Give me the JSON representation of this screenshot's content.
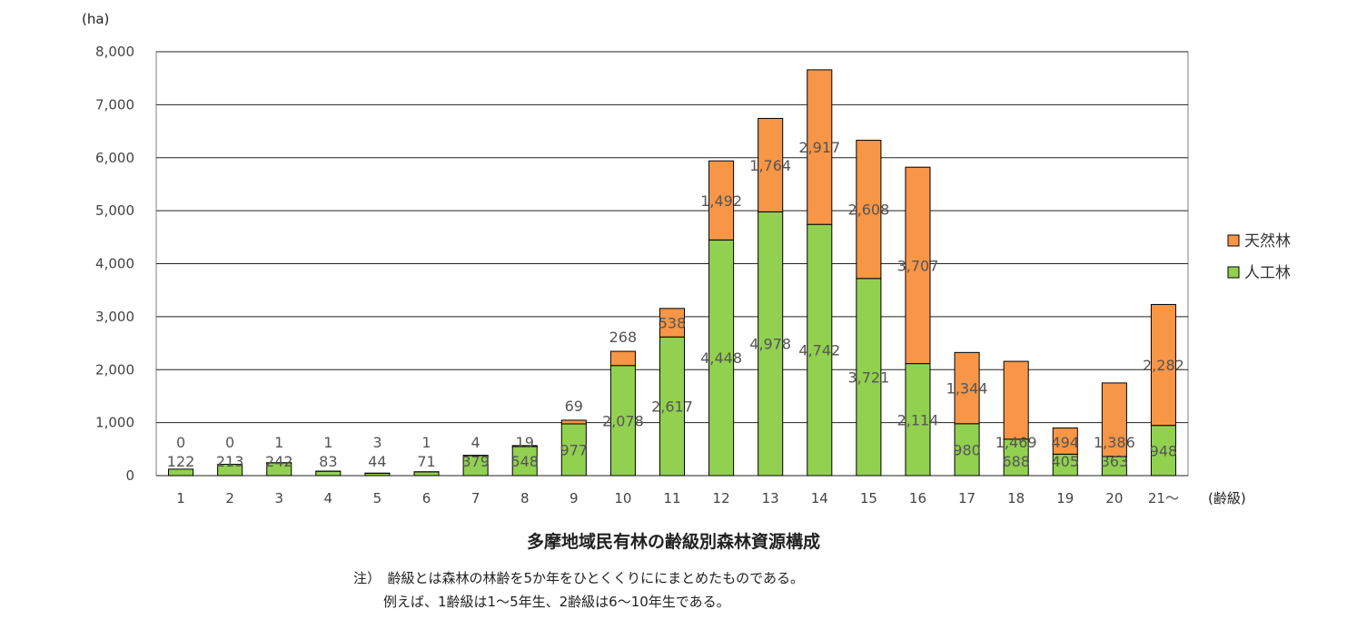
{
  "chart_data": {
    "type": "bar",
    "stacked": true,
    "title": "多摩地域民有林の齢級別森林資源構成",
    "y_unit": "(ha)",
    "x_unit": "(齢級)",
    "ylim": [
      0,
      8000
    ],
    "yticks": [
      "0",
      "1,000",
      "2,000",
      "3,000",
      "4,000",
      "5,000",
      "6,000",
      "7,000",
      "8,000"
    ],
    "grid": true,
    "legend_position": "right",
    "categories": [
      "1",
      "2",
      "3",
      "4",
      "5",
      "6",
      "7",
      "8",
      "9",
      "10",
      "11",
      "12",
      "13",
      "14",
      "15",
      "16",
      "17",
      "18",
      "19",
      "20",
      "21～"
    ],
    "series": [
      {
        "name": "人工林",
        "color": "#92D050",
        "values": [
          122,
          213,
          242,
          83,
          44,
          71,
          379,
          548,
          977,
          2078,
          2617,
          4448,
          4978,
          4742,
          3721,
          2114,
          980,
          688,
          405,
          363,
          948
        ],
        "labels": [
          "122",
          "213",
          "242",
          "83",
          "44",
          "71",
          "379",
          "548",
          "977",
          "2,078",
          "2,617",
          "4,448",
          "4,978",
          "4,742",
          "3,721",
          "2,114",
          "980",
          "688",
          "405",
          "363",
          "948"
        ]
      },
      {
        "name": "天然林",
        "color": "#F79646",
        "values": [
          0,
          0,
          1,
          1,
          3,
          1,
          4,
          19,
          69,
          268,
          538,
          1492,
          1764,
          2917,
          2608,
          3707,
          1344,
          1469,
          494,
          1386,
          2282
        ],
        "labels": [
          "0",
          "0",
          "1",
          "1",
          "3",
          "1",
          "4",
          "19",
          "69",
          "268",
          "538",
          "1,492",
          "1,764",
          "2,917",
          "2,608",
          "3,707",
          "1,344",
          "1,469",
          "494",
          "1,386",
          "2,282"
        ]
      }
    ]
  },
  "notes": [
    "注）　齢級とは森林の林齢を5か年をひとくくりににまとめたものである。",
    "例えば、1齢級は1～5年生、2齢級は6～10年生である。"
  ]
}
